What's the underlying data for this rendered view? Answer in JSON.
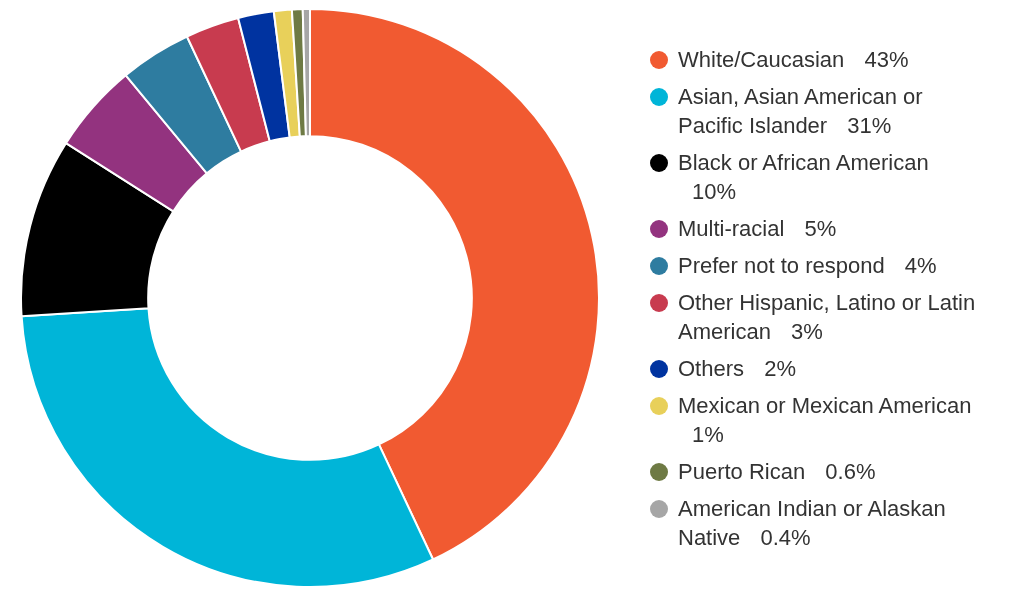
{
  "chart_data": {
    "type": "donut",
    "categories": [
      "White/Caucasian",
      "Asian, Asian American or Pacific Islander",
      "Black or African American",
      "Multi-racial",
      "Prefer not to respond",
      "Other Hispanic, Latino or Latin American",
      "Others",
      "Mexican or Mexican American",
      "Puerto Rican",
      "American Indian or Alaskan Native"
    ],
    "values": [
      43,
      31,
      10,
      5,
      4,
      3,
      2,
      1,
      0.6,
      0.4
    ],
    "value_labels": [
      "43%",
      "31%",
      "10%",
      "5%",
      "4%",
      "3%",
      "2%",
      "1%",
      "0.6%",
      "0.4%"
    ],
    "colors": [
      "#f15a31",
      "#00b5d8",
      "#000000",
      "#93337f",
      "#2e7ca0",
      "#c83b4f",
      "#0033a0",
      "#e8d05a",
      "#6e7a44",
      "#a6a6a6"
    ],
    "legend": "right"
  }
}
